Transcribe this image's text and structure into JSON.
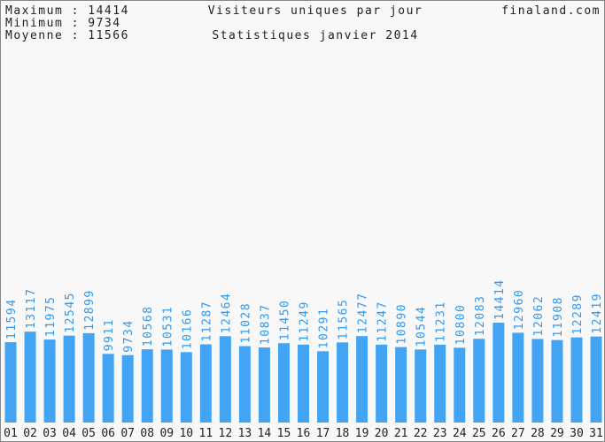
{
  "chart_data": {
    "type": "bar",
    "title": "Visiteurs uniques par jour",
    "subtitle": "Statistiques janvier 2014",
    "site": "finaland.com",
    "stats": [
      "Maximum : 14414",
      "Minimum : 9734",
      "Moyenne : 11566"
    ],
    "categories": [
      "01",
      "02",
      "03",
      "04",
      "05",
      "06",
      "07",
      "08",
      "09",
      "10",
      "11",
      "12",
      "13",
      "14",
      "15",
      "16",
      "17",
      "18",
      "19",
      "20",
      "21",
      "22",
      "23",
      "24",
      "25",
      "26",
      "27",
      "28",
      "29",
      "30",
      "31"
    ],
    "values": [
      11594,
      13117,
      11975,
      12545,
      12899,
      9911,
      9734,
      10568,
      10531,
      10166,
      11287,
      12464,
      11028,
      10837,
      11450,
      11249,
      10291,
      11565,
      12477,
      11247,
      10890,
      10544,
      11231,
      10800,
      12083,
      14414,
      12960,
      12062,
      11908,
      12289,
      12419
    ],
    "color": "#44a4f4",
    "label_color": "#3399ee"
  }
}
